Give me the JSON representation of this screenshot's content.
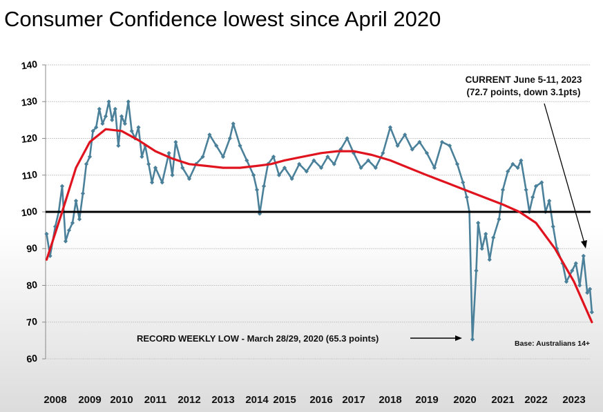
{
  "title": "Consumer Confidence lowest since April 2020",
  "chart_data": {
    "type": "line",
    "title": "Consumer Confidence lowest since April 2020",
    "xlabel": "",
    "ylabel": "",
    "ylim": [
      60,
      140
    ],
    "yticks": [
      60,
      70,
      80,
      90,
      100,
      110,
      120,
      130,
      140
    ],
    "xticks": [
      "2008",
      "2009",
      "2010",
      "2011",
      "2012",
      "2013",
      "2014",
      "2015",
      "2016",
      "2017",
      "2018",
      "2019",
      "2020",
      "2021",
      "2022",
      "2023"
    ],
    "grid": true,
    "reference_line": 100,
    "series": [
      {
        "kind": "weekly",
        "color": "#4a8099",
        "points": [
          [
            2007.75,
            94
          ],
          [
            2007.85,
            88
          ],
          [
            2008.0,
            96
          ],
          [
            2008.1,
            100
          ],
          [
            2008.2,
            107
          ],
          [
            2008.3,
            92
          ],
          [
            2008.4,
            95
          ],
          [
            2008.5,
            97
          ],
          [
            2008.6,
            103
          ],
          [
            2008.7,
            98
          ],
          [
            2008.8,
            105
          ],
          [
            2008.9,
            113
          ],
          [
            2009.0,
            115
          ],
          [
            2009.1,
            122
          ],
          [
            2009.2,
            123
          ],
          [
            2009.3,
            128
          ],
          [
            2009.4,
            124
          ],
          [
            2009.5,
            126
          ],
          [
            2009.6,
            130
          ],
          [
            2009.7,
            125
          ],
          [
            2009.8,
            128
          ],
          [
            2009.9,
            118
          ],
          [
            2010.0,
            126
          ],
          [
            2010.1,
            124
          ],
          [
            2010.2,
            130
          ],
          [
            2010.3,
            122
          ],
          [
            2010.4,
            120
          ],
          [
            2010.5,
            123
          ],
          [
            2010.6,
            115
          ],
          [
            2010.7,
            118
          ],
          [
            2010.8,
            113
          ],
          [
            2010.9,
            108
          ],
          [
            2011.0,
            112
          ],
          [
            2011.2,
            108
          ],
          [
            2011.4,
            116
          ],
          [
            2011.5,
            110
          ],
          [
            2011.6,
            119
          ],
          [
            2011.8,
            112
          ],
          [
            2012.0,
            109
          ],
          [
            2012.2,
            113
          ],
          [
            2012.4,
            115
          ],
          [
            2012.6,
            121
          ],
          [
            2012.8,
            118
          ],
          [
            2013.0,
            115
          ],
          [
            2013.2,
            120
          ],
          [
            2013.3,
            124
          ],
          [
            2013.5,
            118
          ],
          [
            2013.7,
            114
          ],
          [
            2013.9,
            110
          ],
          [
            2014.0,
            106
          ],
          [
            2014.1,
            99.5
          ],
          [
            2014.25,
            107
          ],
          [
            2014.4,
            113
          ],
          [
            2014.6,
            115
          ],
          [
            2014.8,
            110
          ],
          [
            2015.0,
            112
          ],
          [
            2015.2,
            109
          ],
          [
            2015.4,
            113
          ],
          [
            2015.6,
            111
          ],
          [
            2015.8,
            114
          ],
          [
            2016.0,
            112
          ],
          [
            2016.2,
            115
          ],
          [
            2016.4,
            113
          ],
          [
            2016.6,
            117
          ],
          [
            2016.8,
            120
          ],
          [
            2017.0,
            116
          ],
          [
            2017.2,
            112
          ],
          [
            2017.4,
            114
          ],
          [
            2017.6,
            112
          ],
          [
            2017.8,
            116
          ],
          [
            2018.0,
            123
          ],
          [
            2018.2,
            118
          ],
          [
            2018.4,
            121
          ],
          [
            2018.6,
            117
          ],
          [
            2018.8,
            119
          ],
          [
            2019.0,
            116
          ],
          [
            2019.2,
            112
          ],
          [
            2019.4,
            119
          ],
          [
            2019.6,
            118
          ],
          [
            2019.8,
            113
          ],
          [
            2019.95,
            108
          ],
          [
            2020.05,
            104
          ],
          [
            2020.12,
            100
          ],
          [
            2020.2,
            65.3
          ],
          [
            2020.3,
            84
          ],
          [
            2020.35,
            97
          ],
          [
            2020.45,
            90
          ],
          [
            2020.55,
            94
          ],
          [
            2020.65,
            87
          ],
          [
            2020.75,
            93
          ],
          [
            2020.9,
            98
          ],
          [
            2021.0,
            106
          ],
          [
            2021.15,
            111
          ],
          [
            2021.3,
            113
          ],
          [
            2021.45,
            112
          ],
          [
            2021.55,
            114
          ],
          [
            2021.7,
            106
          ],
          [
            2021.8,
            100
          ],
          [
            2021.9,
            104
          ],
          [
            2022.0,
            107
          ],
          [
            2022.15,
            108
          ],
          [
            2022.25,
            100
          ],
          [
            2022.35,
            103
          ],
          [
            2022.45,
            96
          ],
          [
            2022.55,
            90
          ],
          [
            2022.7,
            86
          ],
          [
            2022.8,
            81
          ],
          [
            2022.95,
            84
          ],
          [
            2023.05,
            86
          ],
          [
            2023.15,
            80
          ],
          [
            2023.25,
            88
          ],
          [
            2023.35,
            78
          ],
          [
            2023.42,
            79
          ],
          [
            2023.47,
            72.7
          ]
        ]
      },
      {
        "kind": "trend",
        "color": "#e0141e",
        "points": [
          [
            2007.75,
            87
          ],
          [
            2008.2,
            100
          ],
          [
            2008.6,
            112
          ],
          [
            2009.0,
            119
          ],
          [
            2009.5,
            122.5
          ],
          [
            2010.0,
            122
          ],
          [
            2010.5,
            119.5
          ],
          [
            2011.0,
            116.5
          ],
          [
            2011.5,
            114.5
          ],
          [
            2012.0,
            113
          ],
          [
            2012.5,
            112.5
          ],
          [
            2013.0,
            112
          ],
          [
            2013.5,
            112
          ],
          [
            2014.0,
            112.5
          ],
          [
            2014.5,
            113
          ],
          [
            2015.0,
            114
          ],
          [
            2015.5,
            115
          ],
          [
            2016.0,
            116
          ],
          [
            2016.5,
            116.5
          ],
          [
            2017.0,
            116.5
          ],
          [
            2017.5,
            115.5
          ],
          [
            2018.0,
            114
          ],
          [
            2018.5,
            112
          ],
          [
            2019.0,
            110
          ],
          [
            2019.5,
            108
          ],
          [
            2020.0,
            106
          ],
          [
            2020.5,
            104
          ],
          [
            2021.0,
            102
          ],
          [
            2021.5,
            100
          ],
          [
            2022.0,
            97
          ],
          [
            2022.5,
            90
          ],
          [
            2023.0,
            81
          ],
          [
            2023.47,
            70
          ]
        ]
      }
    ],
    "annotations": {
      "current_line1": "CURRENT June 5-11, 2023",
      "current_line2": "(72.7 points, down 3.1pts)",
      "record_low": "RECORD WEEKLY LOW - March 28/29, 2020 (65.3 points)",
      "base": "Base: Australians 14+"
    }
  }
}
